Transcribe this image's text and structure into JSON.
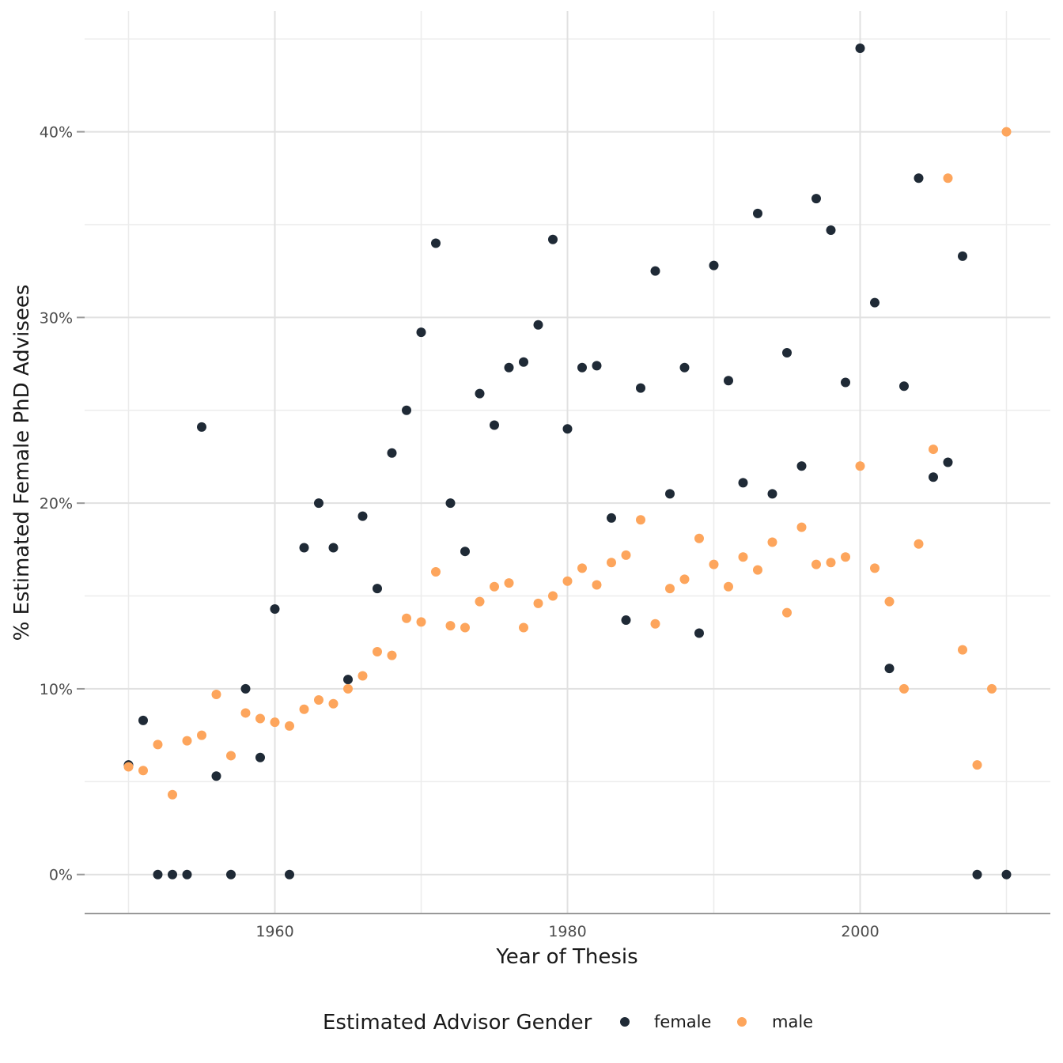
{
  "chart_data": {
    "type": "scatter",
    "title": "",
    "xlabel": "Year of Thesis",
    "ylabel": "% Estimated Female PhD Advisees",
    "xlim": [
      1947,
      2013
    ],
    "ylim": [
      -2.1,
      46.5
    ],
    "x_ticks": [
      1960,
      1980,
      2000
    ],
    "x_tick_labels": [
      "1960",
      "1980",
      "2000"
    ],
    "y_ticks": [
      0,
      10,
      20,
      30,
      40
    ],
    "y_tick_labels": [
      "0%",
      "10%",
      "20%",
      "30%",
      "40%"
    ],
    "grid": true,
    "legend": {
      "title": "Estimated Advisor Gender",
      "position": "bottom"
    },
    "series": [
      {
        "name": "female",
        "color": "#1f2a36",
        "points": [
          [
            1950,
            5.9
          ],
          [
            1951,
            8.3
          ],
          [
            1952,
            0
          ],
          [
            1953,
            0
          ],
          [
            1954,
            0
          ],
          [
            1955,
            24.1
          ],
          [
            1956,
            5.3
          ],
          [
            1957,
            0
          ],
          [
            1958,
            10.0
          ],
          [
            1959,
            6.3
          ],
          [
            1960,
            14.3
          ],
          [
            1961,
            0
          ],
          [
            1962,
            17.6
          ],
          [
            1963,
            20.0
          ],
          [
            1964,
            17.6
          ],
          [
            1965,
            10.5
          ],
          [
            1966,
            19.3
          ],
          [
            1967,
            15.4
          ],
          [
            1968,
            22.7
          ],
          [
            1969,
            25.0
          ],
          [
            1970,
            29.2
          ],
          [
            1971,
            34.0
          ],
          [
            1972,
            20.0
          ],
          [
            1973,
            17.4
          ],
          [
            1974,
            25.9
          ],
          [
            1975,
            24.2
          ],
          [
            1976,
            27.3
          ],
          [
            1977,
            27.6
          ],
          [
            1978,
            29.6
          ],
          [
            1979,
            34.2
          ],
          [
            1980,
            24.0
          ],
          [
            1981,
            27.3
          ],
          [
            1982,
            27.4
          ],
          [
            1983,
            19.2
          ],
          [
            1984,
            13.7
          ],
          [
            1985,
            26.2
          ],
          [
            1986,
            32.5
          ],
          [
            1987,
            20.5
          ],
          [
            1988,
            27.3
          ],
          [
            1989,
            13.0
          ],
          [
            1990,
            32.8
          ],
          [
            1991,
            26.6
          ],
          [
            1992,
            21.1
          ],
          [
            1993,
            35.6
          ],
          [
            1994,
            20.5
          ],
          [
            1995,
            28.1
          ],
          [
            1996,
            22.0
          ],
          [
            1997,
            36.4
          ],
          [
            1998,
            34.7
          ],
          [
            1999,
            26.5
          ],
          [
            2000,
            44.5
          ],
          [
            2001,
            30.8
          ],
          [
            2002,
            11.1
          ],
          [
            2003,
            26.3
          ],
          [
            2004,
            37.5
          ],
          [
            2005,
            21.4
          ],
          [
            2006,
            22.2
          ],
          [
            2007,
            33.3
          ],
          [
            2008,
            0
          ],
          [
            2010,
            0
          ]
        ]
      },
      {
        "name": "male",
        "color": "#fda55c",
        "points": [
          [
            1950,
            5.8
          ],
          [
            1951,
            5.6
          ],
          [
            1952,
            7.0
          ],
          [
            1953,
            4.3
          ],
          [
            1954,
            7.2
          ],
          [
            1955,
            7.5
          ],
          [
            1956,
            9.7
          ],
          [
            1957,
            6.4
          ],
          [
            1958,
            8.7
          ],
          [
            1959,
            8.4
          ],
          [
            1960,
            8.2
          ],
          [
            1961,
            8.0
          ],
          [
            1962,
            8.9
          ],
          [
            1963,
            9.4
          ],
          [
            1964,
            9.2
          ],
          [
            1965,
            10.0
          ],
          [
            1966,
            10.7
          ],
          [
            1967,
            12.0
          ],
          [
            1968,
            11.8
          ],
          [
            1969,
            13.8
          ],
          [
            1970,
            13.6
          ],
          [
            1971,
            16.3
          ],
          [
            1972,
            13.4
          ],
          [
            1973,
            13.3
          ],
          [
            1974,
            14.7
          ],
          [
            1975,
            15.5
          ],
          [
            1976,
            15.7
          ],
          [
            1977,
            13.3
          ],
          [
            1978,
            14.6
          ],
          [
            1979,
            15.0
          ],
          [
            1980,
            15.8
          ],
          [
            1981,
            16.5
          ],
          [
            1982,
            15.6
          ],
          [
            1983,
            16.8
          ],
          [
            1984,
            17.2
          ],
          [
            1985,
            19.1
          ],
          [
            1986,
            13.5
          ],
          [
            1987,
            15.4
          ],
          [
            1988,
            15.9
          ],
          [
            1989,
            18.1
          ],
          [
            1990,
            16.7
          ],
          [
            1991,
            15.5
          ],
          [
            1992,
            17.1
          ],
          [
            1993,
            16.4
          ],
          [
            1994,
            17.9
          ],
          [
            1995,
            14.1
          ],
          [
            1996,
            18.7
          ],
          [
            1997,
            16.7
          ],
          [
            1998,
            16.8
          ],
          [
            1999,
            17.1
          ],
          [
            2000,
            22.0
          ],
          [
            2001,
            16.5
          ],
          [
            2002,
            14.7
          ],
          [
            2003,
            10.0
          ],
          [
            2004,
            17.8
          ],
          [
            2005,
            22.9
          ],
          [
            2006,
            37.5
          ],
          [
            2007,
            12.1
          ],
          [
            2008,
            5.9
          ],
          [
            2009,
            10.0
          ],
          [
            2010,
            40.0
          ]
        ]
      }
    ]
  }
}
